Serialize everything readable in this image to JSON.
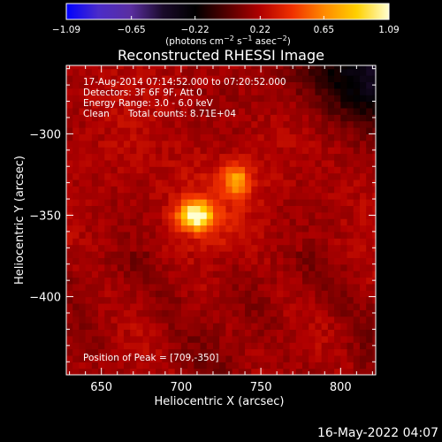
{
  "chart_data": {
    "type": "heatmap",
    "title": "Reconstructed RHESSI Image",
    "xlabel": "Heliocentric X (arcsec)",
    "ylabel": "Heliocentric Y (arcsec)",
    "xlim": [
      628,
      822
    ],
    "ylim": [
      -448,
      -258
    ],
    "x_ticks": [
      650,
      700,
      750,
      800
    ],
    "y_ticks": [
      -300,
      -350,
      -400
    ],
    "x_tick_labels": [
      "650",
      "700",
      "750",
      "800"
    ],
    "y_tick_labels": [
      "−300",
      "−350",
      "−400"
    ],
    "colorbar": {
      "min": -1.09,
      "max": 1.09,
      "ticks": [
        -1.09,
        -0.65,
        -0.22,
        0.22,
        0.65,
        1.09
      ],
      "tick_labels": [
        "−1.09",
        "−0.65",
        "−0.22",
        "0.22",
        "0.65",
        "1.09"
      ],
      "unit_label_parts": [
        "(photons cm",
        "−2",
        " s",
        "−1",
        " asec",
        "−2",
        ")"
      ],
      "colormap": [
        "#0000ff",
        "#4b2cc9",
        "#5a2ea0",
        "#1a0a2a",
        "#000000",
        "#550000",
        "#b00000",
        "#f03000",
        "#ff8a00",
        "#ffd000",
        "#ffffd0"
      ]
    },
    "annotations": [
      "17-Aug-2014 07:14:52.000 to 07:20:52.000",
      "Detectors: 3F 6F 9F, Att 0",
      "Energy Range: 3.0 - 6.0 keV",
      "Clean",
      "Total counts: 8.71E+04"
    ],
    "peak_label": "Position of Peak = [709,-350]",
    "peak_position": [
      709,
      -350
    ],
    "sources": [
      {
        "x": 709,
        "y": -350,
        "peak": 1.09
      },
      {
        "x": 735,
        "y": -328,
        "peak": 0.7
      }
    ]
  },
  "footer": {
    "timestamp": "16-May-2022 04:07"
  }
}
